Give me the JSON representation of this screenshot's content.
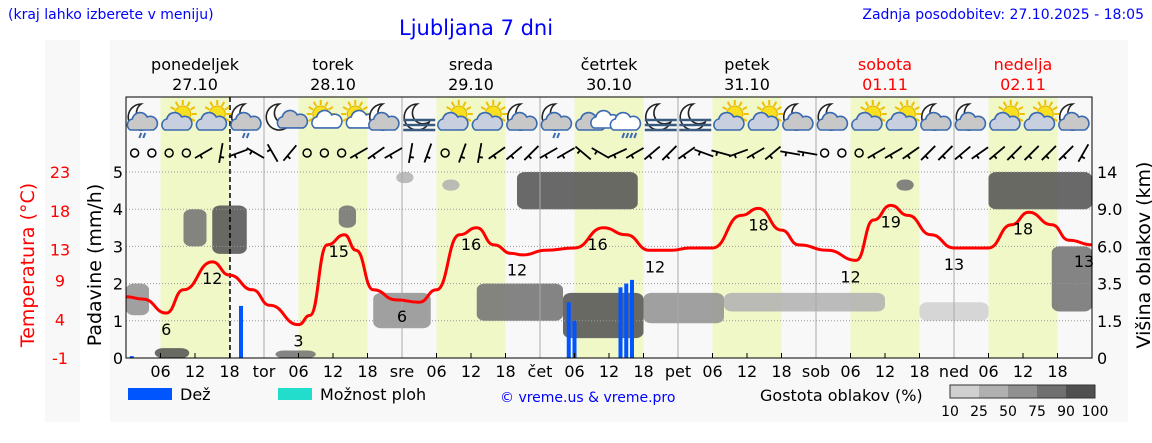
{
  "header": {
    "hint": "(kraj lahko izberete v meniju)",
    "title": "Ljubljana 7 dni",
    "updated": "Zadnja posodobitev: 27.10.2025 - 18:05"
  },
  "days": [
    {
      "name": "ponedeljek",
      "date": "27.10",
      "weekend": false,
      "short": ""
    },
    {
      "name": "torek",
      "date": "28.10",
      "weekend": false,
      "short": "tor"
    },
    {
      "name": "sreda",
      "date": "29.10",
      "weekend": false,
      "short": "sre"
    },
    {
      "name": "četrtek",
      "date": "30.10",
      "weekend": false,
      "short": "čet"
    },
    {
      "name": "petek",
      "date": "31.10",
      "weekend": false,
      "short": "pet"
    },
    {
      "name": "sobota",
      "date": "01.11",
      "weekend": true,
      "short": "sob"
    },
    {
      "name": "nedelja",
      "date": "02.11",
      "weekend": true,
      "short": "ned"
    }
  ],
  "hour_ticks": [
    "06",
    "12",
    "18"
  ],
  "icons": [
    "moon-cloud-rain",
    "sun-cloud",
    "sun-cloud",
    "moon-cloud-rain",
    "moon-small-cloud",
    "sun-small-cloud",
    "sun-small-cloud",
    "moon-cloud",
    "moon-fog",
    "sun-cloud",
    "sun-cloud",
    "moon-cloud",
    "moon-cloud-rain",
    "cloudy",
    "cloud-rain",
    "moon-fog",
    "moon-fog",
    "sun-cloud",
    "sun-cloud",
    "moon-cloud",
    "moon-cloud",
    "sun-cloud",
    "sun-cloud",
    "moon-cloud",
    "moon-cloud",
    "sun-cloud",
    "sun-cloud",
    "moon-cloud"
  ],
  "wind": [
    "calm",
    "calm",
    "calm",
    "calm",
    30,
    80,
    20,
    -30,
    -60,
    50,
    "calm",
    "calm",
    "calm",
    30,
    35,
    30,
    80,
    70,
    "calm",
    70,
    80,
    35,
    40,
    45,
    30,
    30,
    -40,
    -30,
    25,
    30,
    40,
    45,
    35,
    -20,
    -15,
    20,
    30,
    40,
    -10,
    -10,
    "calm",
    "calm",
    "calm",
    30,
    30,
    35,
    45,
    45,
    40,
    35,
    40,
    45,
    45,
    45,
    45,
    60
  ],
  "chart_data": {
    "type": "line",
    "title": "Ljubljana 7 dni",
    "x_start": "27.10 00",
    "x_end": "03.11 00",
    "now": "27.10 18:05",
    "colors": {
      "temperature": "#ff0000",
      "rain": "#0055ff",
      "shower": "#22ddcc",
      "day_shade": "#f0f8c8"
    },
    "axes": {
      "temperature": {
        "label": "Temperatura (°C)",
        "ticks": [
          "23",
          "18",
          "13",
          "9",
          "4",
          "-1"
        ],
        "range": [
          -1,
          23
        ]
      },
      "precipitation": {
        "label": "Padavine (mm/h)",
        "ticks": [
          "5",
          "4",
          "3",
          "2",
          "1",
          "0"
        ],
        "range": [
          0,
          5
        ]
      },
      "cloud_height": {
        "label": "Višina oblakov (km)",
        "ticks": [
          "14",
          "9.0",
          "6.0",
          "3.5",
          "1.5",
          "0"
        ]
      }
    },
    "temperature": [
      [
        "27.10 00",
        6.9
      ],
      [
        "27.10 03",
        6.6
      ],
      [
        "27.10 07",
        4.8
      ],
      [
        "27.10 10",
        7.8
      ],
      [
        "27.10 15",
        11.4
      ],
      [
        "27.10 18",
        9.7
      ],
      [
        "27.10 22",
        7.8
      ],
      [
        "28.10 01",
        5.8
      ],
      [
        "28.10 06",
        3.3
      ],
      [
        "28.10 08",
        4.5
      ],
      [
        "28.10 11",
        13.6
      ],
      [
        "28.10 14",
        14.9
      ],
      [
        "28.10 16",
        12.9
      ],
      [
        "28.10 19",
        7.8
      ],
      [
        "28.10 23",
        6.5
      ],
      [
        "29.10 03",
        6.2
      ],
      [
        "29.10 06",
        7.8
      ],
      [
        "29.10 10",
        14.9
      ],
      [
        "29.10 13",
        15.8
      ],
      [
        "29.10 16",
        13.6
      ],
      [
        "29.10 19",
        12.5
      ],
      [
        "29.10 21",
        12.3
      ],
      [
        "30.10 01",
        12.9
      ],
      [
        "30.10 06",
        13.2
      ],
      [
        "30.10 11",
        15.8
      ],
      [
        "30.10 15",
        14.9
      ],
      [
        "30.10 19",
        12.9
      ],
      [
        "30.10 23",
        12.9
      ],
      [
        "31.10 02",
        13.2
      ],
      [
        "31.10 06",
        13.2
      ],
      [
        "31.10 11",
        17.4
      ],
      [
        "31.10 14",
        18.3
      ],
      [
        "31.10 18",
        15.5
      ],
      [
        "31.10 21",
        13.6
      ],
      [
        "01.11 02",
        12.9
      ],
      [
        "01.11 07",
        11.6
      ],
      [
        "01.11 10",
        16.8
      ],
      [
        "01.11 13",
        18.7
      ],
      [
        "01.11 16",
        17.4
      ],
      [
        "01.11 20",
        14.9
      ],
      [
        "02.11 00",
        13.2
      ],
      [
        "02.11 06",
        13.2
      ],
      [
        "02.11 10",
        16.2
      ],
      [
        "02.11 13",
        17.8
      ],
      [
        "02.11 17",
        16.2
      ],
      [
        "02.11 20",
        14.2
      ],
      [
        "03.11 00",
        13.6
      ]
    ],
    "temperature_labels": [
      [
        "27.10 07",
        "6"
      ],
      [
        "27.10 15",
        "12"
      ],
      [
        "28.10 06",
        "3"
      ],
      [
        "28.10 13",
        "15"
      ],
      [
        "29.10 00",
        "6"
      ],
      [
        "29.10 12",
        "16"
      ],
      [
        "29.10 20",
        "12"
      ],
      [
        "30.10 10",
        "16"
      ],
      [
        "30.10 20",
        "12"
      ],
      [
        "31.10 14",
        "18"
      ],
      [
        "01.11 06",
        "12"
      ],
      [
        "01.11 13",
        "19"
      ],
      [
        "02.11 00",
        "13"
      ],
      [
        "02.11 12",
        "18"
      ],
      [
        "02.11 24",
        "13"
      ]
    ],
    "rain": [
      [
        "27.10 01",
        0.05
      ],
      [
        "27.10 20",
        1.4
      ],
      [
        "30.10 05",
        1.5
      ],
      [
        "30.10 06",
        1.0
      ],
      [
        "30.10 14",
        1.9
      ],
      [
        "30.10 15",
        2.0
      ],
      [
        "30.10 16",
        2.1
      ]
    ],
    "clouds": [
      [
        "27.10 00",
        "27.10 04",
        1.8,
        3.5,
        50
      ],
      [
        "27.10 05",
        "27.10 11",
        0,
        0.4,
        90
      ],
      [
        "27.10 10",
        "27.10 14",
        6,
        9,
        75
      ],
      [
        "27.10 15",
        "27.10 21",
        5.5,
        9.5,
        90
      ],
      [
        "28.10 02",
        "28.10 09",
        0,
        0.3,
        75
      ],
      [
        "28.10 13",
        "28.10 16",
        7.5,
        9.5,
        75
      ],
      [
        "28.10 19",
        "29.10 05",
        1.2,
        3,
        50
      ],
      [
        "28.10 23",
        "29.10 02",
        12.5,
        14,
        25
      ],
      [
        "29.10 07",
        "29.10 10",
        11.5,
        13,
        25
      ],
      [
        "29.10 13",
        "30.10 04",
        1.5,
        3.5,
        75
      ],
      [
        "29.10 20",
        "30.10 17",
        9,
        14,
        90
      ],
      [
        "30.10 04",
        "30.10 18",
        0.8,
        3,
        90
      ],
      [
        "30.10 18",
        "31.10 08",
        1.4,
        3,
        50
      ],
      [
        "31.10 08",
        "01.11 12",
        2,
        3,
        25
      ],
      [
        "01.11 14",
        "01.11 17",
        11.5,
        13,
        75
      ],
      [
        "02.11 06",
        "02.11 24",
        9,
        14,
        90
      ],
      [
        "02.11 17",
        "02.11 24",
        2,
        6,
        75
      ],
      [
        "01.11 18",
        "02.11 06",
        1.5,
        2.5,
        10
      ]
    ]
  },
  "legend": {
    "rain_label": "Dež",
    "shower_label": "Možnost ploh",
    "copyright": "© vreme.us & vreme.pro",
    "density_label": "Gostota oblakov (%)",
    "density_ticks": [
      "10",
      "25",
      "50",
      "75",
      "90",
      "100"
    ],
    "density_colors": [
      "#d0d0d0",
      "#b0b0b0",
      "#909090",
      "#707070",
      "#505050"
    ]
  }
}
